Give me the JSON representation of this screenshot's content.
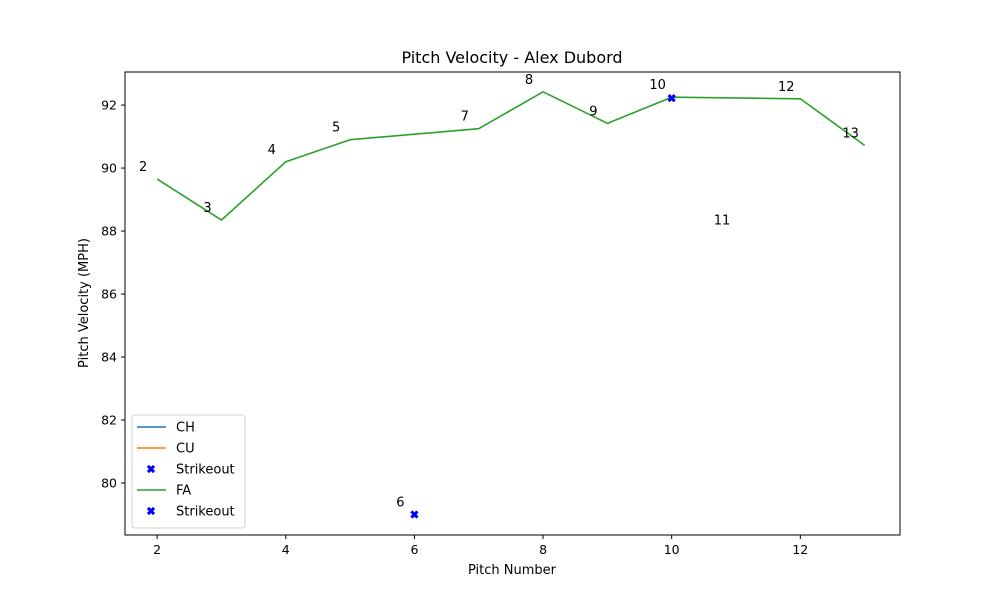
{
  "chart_data": {
    "type": "line",
    "title": "Pitch Velocity - Alex Dubord",
    "xlabel": "Pitch Number",
    "ylabel": "Pitch Velocity (MPH)",
    "xlim": [
      1.5,
      13.55
    ],
    "ylim": [
      78.35,
      93.05
    ],
    "xticks": [
      2,
      4,
      6,
      8,
      10,
      12
    ],
    "yticks": [
      80,
      82,
      84,
      86,
      88,
      90,
      92
    ],
    "grid": false,
    "legend_position": "lower-left",
    "series": [
      {
        "name": "CH",
        "kind": "line",
        "color": "#1f77b4",
        "x": [],
        "y": []
      },
      {
        "name": "CU",
        "kind": "line",
        "color": "#ff7f0e",
        "x": [],
        "y": []
      },
      {
        "name": "Strikeout",
        "kind": "marker",
        "color": "#0000ff",
        "x": [
          6
        ],
        "y": [
          79.0
        ]
      },
      {
        "name": "FA",
        "kind": "line",
        "color": "#2ca02c",
        "x": [
          2,
          3,
          4,
          5,
          7,
          8,
          9,
          10,
          12,
          13
        ],
        "y": [
          89.65,
          88.35,
          90.2,
          90.9,
          91.25,
          92.42,
          91.42,
          92.25,
          92.2,
          90.72
        ]
      },
      {
        "name": "Strikeout",
        "kind": "marker",
        "color": "#0000ff",
        "x": [
          10
        ],
        "y": [
          92.22
        ]
      }
    ],
    "point_labels": [
      {
        "text": "2",
        "x": 2,
        "y": 89.65
      },
      {
        "text": "3",
        "x": 3,
        "y": 88.35
      },
      {
        "text": "4",
        "x": 4,
        "y": 90.2
      },
      {
        "text": "5",
        "x": 5,
        "y": 90.9
      },
      {
        "text": "6",
        "x": 6,
        "y": 79.0
      },
      {
        "text": "7",
        "x": 7,
        "y": 91.25
      },
      {
        "text": "8",
        "x": 8,
        "y": 92.42
      },
      {
        "text": "9",
        "x": 9,
        "y": 91.42
      },
      {
        "text": "10",
        "x": 10,
        "y": 92.25
      },
      {
        "text": "11",
        "x": 11,
        "y": 87.95
      },
      {
        "text": "12",
        "x": 12,
        "y": 92.2
      },
      {
        "text": "13",
        "x": 13,
        "y": 90.72
      }
    ]
  }
}
